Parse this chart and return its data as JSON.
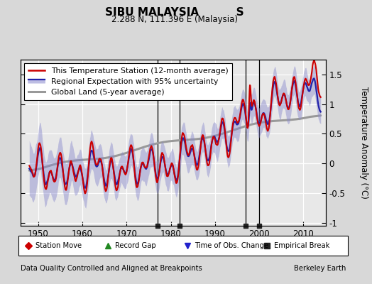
{
  "title": "SIBU MALAYSIA          S",
  "subtitle": "2.288 N, 111.396 E (Malaysia)",
  "ylabel": "Temperature Anomaly (°C)",
  "xlabel_left": "Data Quality Controlled and Aligned at Breakpoints",
  "xlabel_right": "Berkeley Earth",
  "xlim": [
    1946,
    2015
  ],
  "ylim": [
    -1.05,
    1.75
  ],
  "yticks": [
    -1.0,
    -0.5,
    0,
    0.5,
    1.0,
    1.5
  ],
  "ytick_labels": [
    "-1",
    "-0.5",
    "0",
    "0.5",
    "1",
    "1.5"
  ],
  "xticks": [
    1950,
    1960,
    1970,
    1980,
    1990,
    2000,
    2010
  ],
  "bg_color": "#d8d8d8",
  "plot_bg_color": "#e8e8e8",
  "grid_color": "#ffffff",
  "empirical_breaks": [
    1977,
    1982,
    1997,
    2000
  ],
  "legend_entries": [
    {
      "label": "This Temperature Station (12-month average)",
      "color": "#cc0000",
      "lw": 1.8
    },
    {
      "label": "Regional Expectation with 95% uncertainty",
      "color": "#2222aa",
      "lw": 1.8
    },
    {
      "label": "Global Land (5-year average)",
      "color": "#999999",
      "lw": 2.2
    }
  ],
  "station_color": "#cc0000",
  "regional_color": "#2222aa",
  "regional_fill_color": "#8888cc",
  "global_color": "#999999",
  "seed": 12345
}
